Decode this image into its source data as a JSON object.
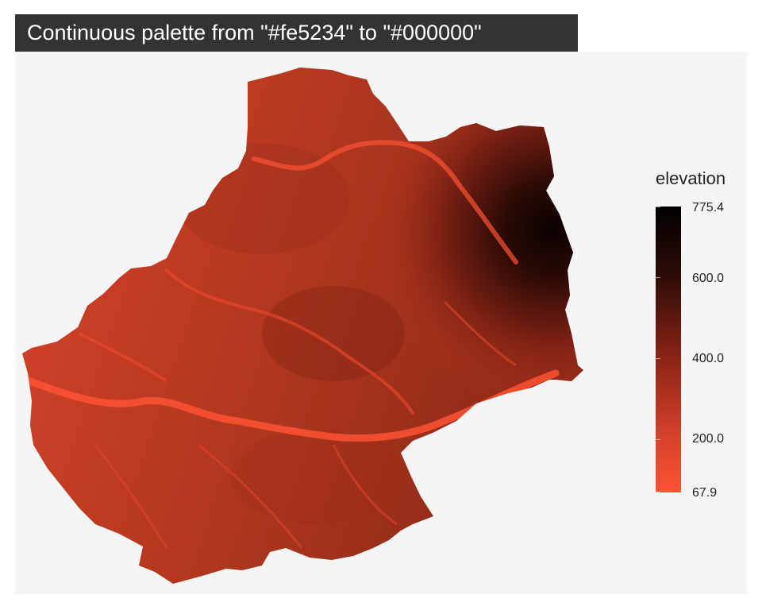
{
  "title": "Continuous palette from \"#fe5234\" to \"#000000\"",
  "colors": {
    "low": "#fe5234",
    "high": "#000000",
    "title_background": "#333333",
    "panel_background": "#f5f5f5"
  },
  "legend": {
    "title": "elevation",
    "min": 67.9,
    "max": 775.4,
    "ticks": [
      "775.4",
      "600.0",
      "400.0",
      "200.0",
      "67.9"
    ]
  }
}
